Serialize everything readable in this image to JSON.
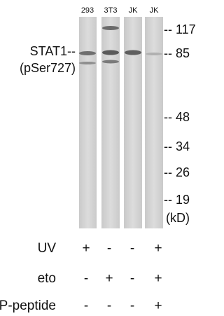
{
  "lanes": [
    "293",
    "3T3",
    "JK",
    "JK"
  ],
  "protein": {
    "name": "STAT1--",
    "site": "(pSer727)"
  },
  "markers": [
    "-- 117",
    "-- 85",
    "-- 48",
    "-- 34",
    "-- 26",
    "-- 19",
    "(kD)"
  ],
  "treatments": [
    {
      "name": "UV",
      "signs": [
        "+",
        "-",
        "-",
        "+"
      ]
    },
    {
      "name": "eto",
      "signs": [
        "-",
        "+",
        "-",
        "+"
      ]
    },
    {
      "name": "P-peptide",
      "signs": [
        "-",
        "-",
        "-",
        "+"
      ]
    }
  ]
}
